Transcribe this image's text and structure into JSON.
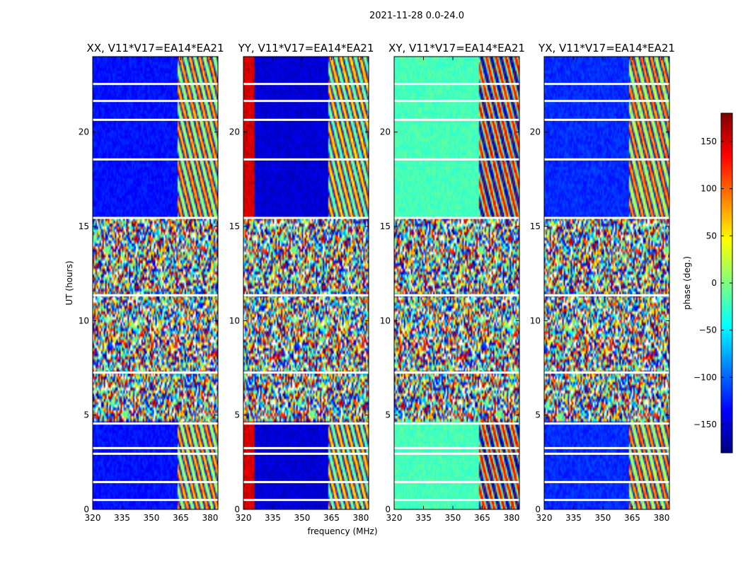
{
  "chart_data": {
    "type": "heatmap",
    "suptitle": "2021-11-28 0.0-24.0",
    "panels": [
      {
        "title": "XX, V11*V17=EA14*EA21",
        "baseline_phase": -130,
        "band_start_freq": 363.5
      },
      {
        "title": "YY, V11*V17=EA14*EA21",
        "baseline_phase": -150,
        "band_start_freq": 363.5
      },
      {
        "title": "XY, V11*V17=EA14*EA21",
        "baseline_phase": -20,
        "band_start_freq": 363.5
      },
      {
        "title": "YX, V11*V17=EA14*EA21",
        "baseline_phase": -120,
        "band_start_freq": 363.5
      }
    ],
    "xlabel": "frequency (MHz)",
    "ylabel": "UT (hours)",
    "xlim": [
      320,
      384
    ],
    "ylim": [
      0,
      24
    ],
    "xticks": [
      320,
      335,
      350,
      365,
      380
    ],
    "yticks": [
      0,
      5,
      10,
      15,
      20
    ],
    "colorbar": {
      "label": "phase (deg.)",
      "range": [
        -180,
        180
      ],
      "ticks": [
        "150",
        "100",
        "50",
        "0",
        "−50",
        "−100",
        "−150"
      ],
      "tick_values": [
        150,
        100,
        50,
        0,
        -50,
        -100,
        -150
      ],
      "colormap": "jet"
    },
    "time_segments": [
      {
        "start": 0.0,
        "end": 4.6,
        "state": "coherent"
      },
      {
        "start": 4.6,
        "end": 7.4,
        "state": "noisy"
      },
      {
        "start": 7.4,
        "end": 11.4,
        "state": "noisy"
      },
      {
        "start": 11.4,
        "end": 15.4,
        "state": "noisy"
      },
      {
        "start": 15.4,
        "end": 24.0,
        "state": "coherent"
      }
    ],
    "gap_hours": [
      0.5,
      1.45,
      2.95,
      3.25,
      4.55,
      7.25,
      11.35,
      15.45,
      18.55,
      20.65,
      21.65,
      22.55
    ]
  }
}
